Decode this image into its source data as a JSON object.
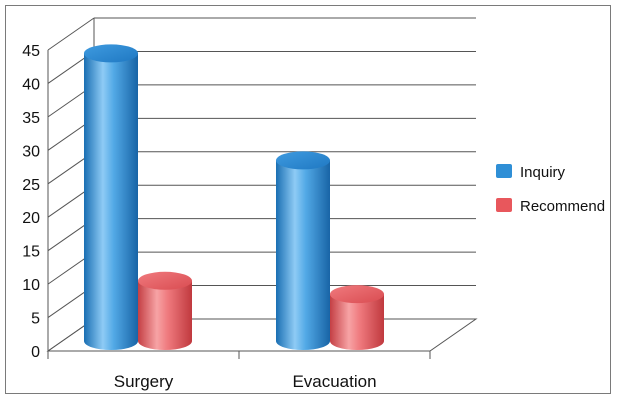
{
  "chart_data": {
    "type": "bar",
    "style": "3d-cylinder",
    "title": "",
    "xlabel": "",
    "ylabel": "",
    "categories": [
      "Surgery",
      "Evacuation"
    ],
    "series": [
      {
        "name": "Inquiry",
        "values": [
          43,
          27
        ],
        "color": "#2f8fd6"
      },
      {
        "name": "Recommend",
        "values": [
          9,
          7
        ],
        "color": "#e8575c"
      }
    ],
    "ylim": [
      0,
      45
    ],
    "yticks": [
      0,
      5,
      10,
      15,
      20,
      25,
      30,
      35,
      40,
      45
    ],
    "grid": true,
    "legend_position": "right"
  }
}
